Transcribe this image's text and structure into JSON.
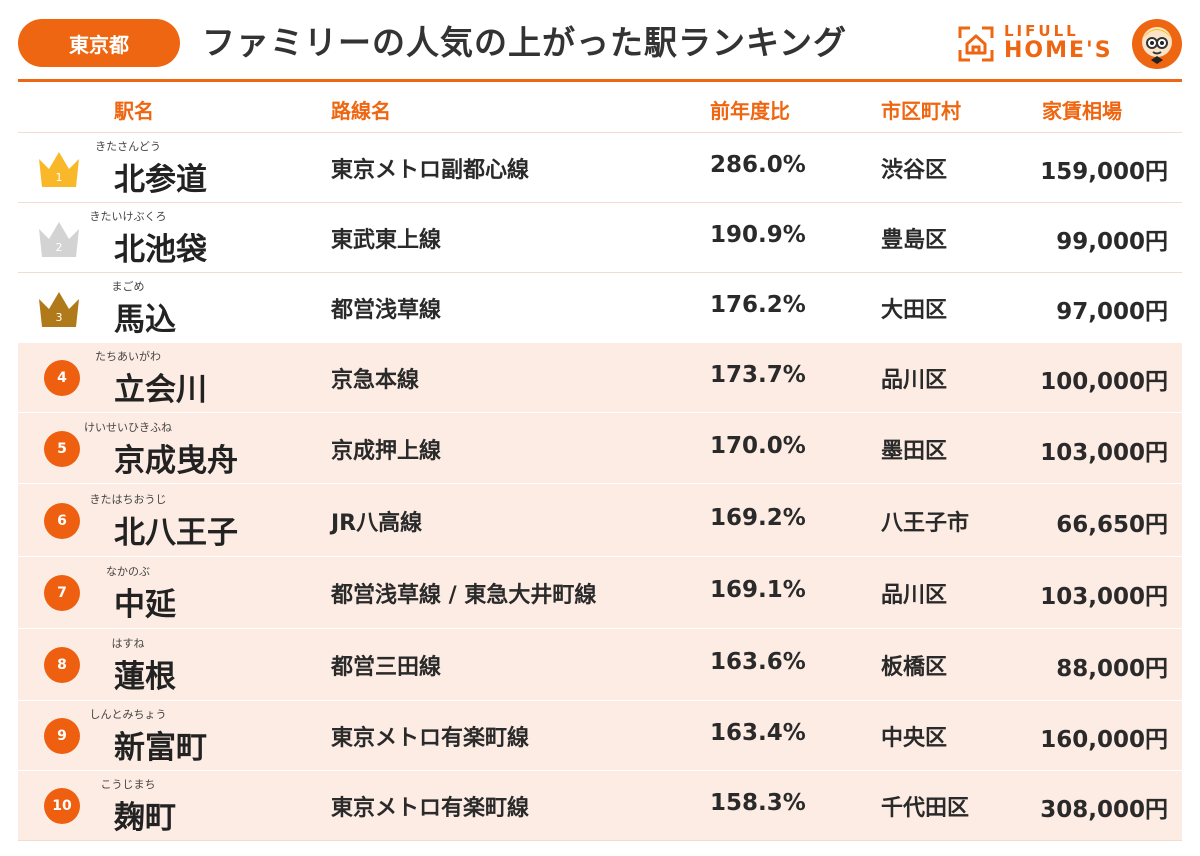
{
  "header": {
    "badge": "東京都",
    "title": "ファミリーの人気の上がった駅ランキング",
    "logo_line1": "LIFULL",
    "logo_line2": "HOME'S",
    "accent_color": "#ee6611"
  },
  "columns": {
    "station": "駅名",
    "line": "路線名",
    "ratio": "前年度比",
    "city": "市区町村",
    "rent": "家賃相場"
  },
  "rows": [
    {
      "rank": "1",
      "rank_icon": "gold-crown-icon",
      "furigana": "きたさんどう",
      "station": "北参道",
      "line": "東京メトロ副都心線",
      "ratio": "286.0%",
      "city": "渋谷区",
      "rent": "159,000円"
    },
    {
      "rank": "2",
      "rank_icon": "silver-crown-icon",
      "furigana": "きたいけぶくろ",
      "station": "北池袋",
      "line": "東武東上線",
      "ratio": "190.9%",
      "city": "豊島区",
      "rent": "99,000円"
    },
    {
      "rank": "3",
      "rank_icon": "bronze-crown-icon",
      "furigana": "まごめ",
      "station": "馬込",
      "line": "都営浅草線",
      "ratio": "176.2%",
      "city": "大田区",
      "rent": "97,000円"
    },
    {
      "rank": "4",
      "furigana": "たちあいがわ",
      "station": "立会川",
      "line": "京急本線",
      "ratio": "173.7%",
      "city": "品川区",
      "rent": "100,000円"
    },
    {
      "rank": "5",
      "furigana": "けいせいひきふね",
      "station": "京成曳舟",
      "line": "京成押上線",
      "ratio": "170.0%",
      "city": "墨田区",
      "rent": "103,000円"
    },
    {
      "rank": "6",
      "furigana": "きたはちおうじ",
      "station": "北八王子",
      "line": "JR八高線",
      "ratio": "169.2%",
      "city": "八王子市",
      "rent": "66,650円"
    },
    {
      "rank": "7",
      "furigana": "なかのぶ",
      "station": "中延",
      "line": "都営浅草線 / 東急大井町線",
      "ratio": "169.1%",
      "city": "品川区",
      "rent": "103,000円"
    },
    {
      "rank": "8",
      "furigana": "はすね",
      "station": "蓮根",
      "line": "都営三田線",
      "ratio": "163.6%",
      "city": "板橋区",
      "rent": "88,000円"
    },
    {
      "rank": "9",
      "furigana": "しんとみちょう",
      "station": "新富町",
      "line": "東京メトロ有楽町線",
      "ratio": "163.4%",
      "city": "中央区",
      "rent": "160,000円"
    },
    {
      "rank": "10",
      "furigana": "こうじまち",
      "station": "麹町",
      "line": "東京メトロ有楽町線",
      "ratio": "158.3%",
      "city": "千代田区",
      "rent": "308,000円"
    }
  ]
}
